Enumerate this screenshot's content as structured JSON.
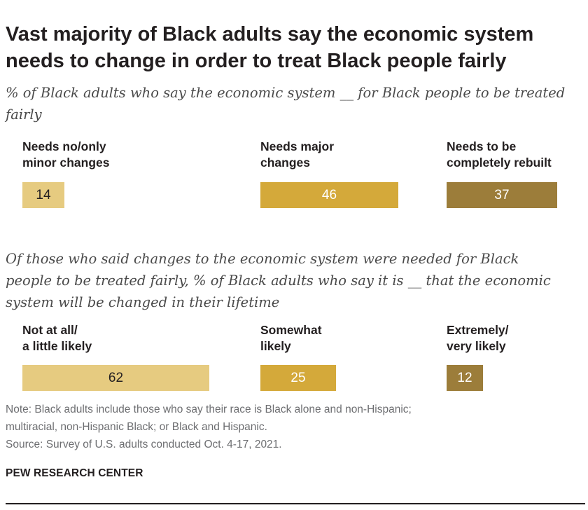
{
  "title": "Vast majority of Black adults say the economic system needs to change in order to treat Black people fairly",
  "colors": {
    "light": "#e6cb80",
    "medium": "#d4a93a",
    "dark": "#9c7d3a"
  },
  "chart_data": [
    {
      "type": "bar",
      "subtitle": "% of Black adults who say the economic system __ for Black people to be treated fairly",
      "categories": [
        "Needs no/only\nminor changes",
        "Needs major\nchanges",
        "Needs to be\ncompletely rebuilt"
      ],
      "values": [
        14,
        46,
        37
      ],
      "value_labels": [
        "14",
        "46",
        "37"
      ],
      "colors": [
        "#e6cb80",
        "#d4a93a",
        "#9c7d3a"
      ],
      "xlim": [
        0,
        100
      ]
    },
    {
      "type": "bar",
      "subtitle": "Of those who said changes to the economic system were needed for Black people to be treated fairly, % of Black adults who say it is __  that the economic system will be changed in their lifetime",
      "categories": [
        "Not at all/\na little likely",
        "Somewhat\nlikely",
        "Extremely/\nvery likely"
      ],
      "values": [
        62,
        25,
        12
      ],
      "value_labels": [
        "62",
        "25",
        "12"
      ],
      "colors": [
        "#e6cb80",
        "#d4a93a",
        "#9c7d3a"
      ],
      "xlim": [
        0,
        100
      ]
    }
  ],
  "note": {
    "line1": "Note: Black adults include those who say their race is Black alone and non-Hispanic;",
    "line2": "multiracial, non-Hispanic Black; or Black and Hispanic.",
    "source": "Source: Survey of U.S. adults conducted Oct. 4-17, 2021."
  },
  "brand": "PEW RESEARCH CENTER"
}
